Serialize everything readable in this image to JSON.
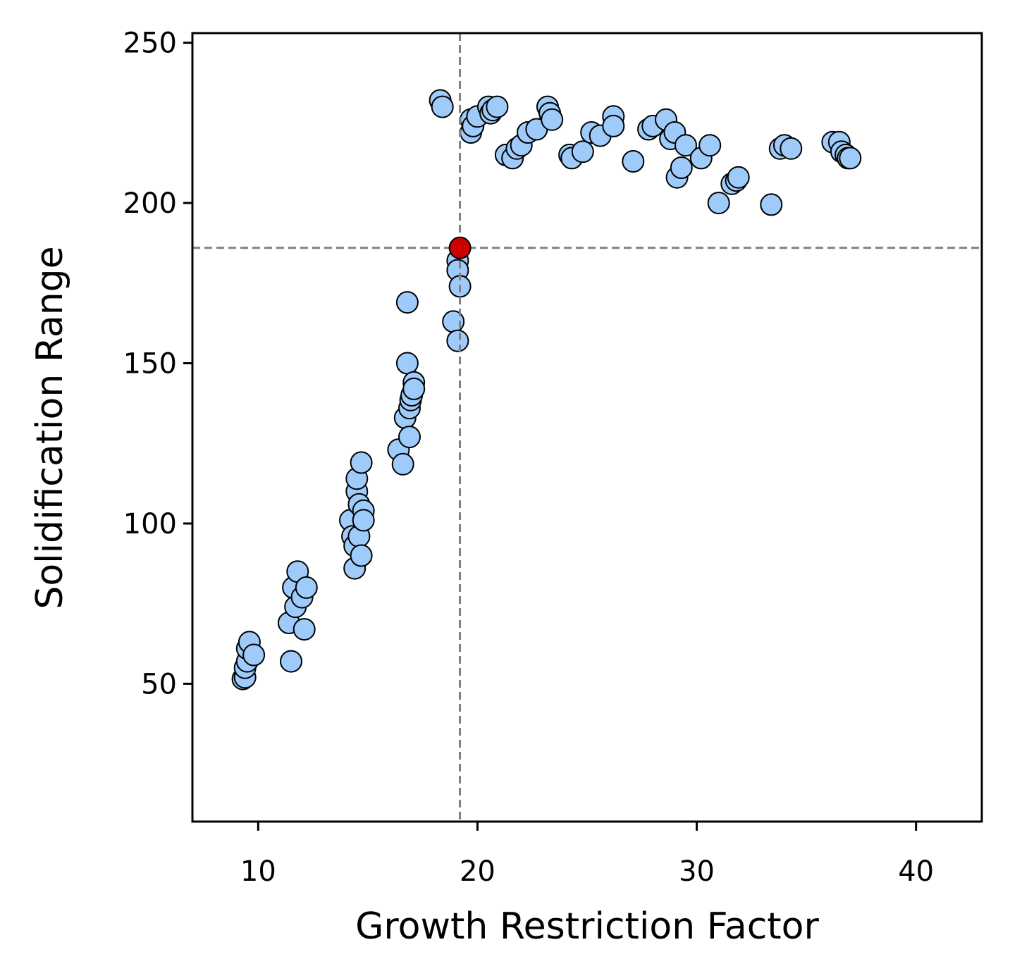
{
  "chart_data": {
    "type": "scatter",
    "title": "",
    "xlabel": "Growth Restriction Factor",
    "ylabel": "Solidification Range",
    "xlim": [
      7,
      43
    ],
    "ylim": [
      7,
      253
    ],
    "xticks": [
      10,
      20,
      30,
      40
    ],
    "yticks": [
      50,
      100,
      150,
      200,
      250
    ],
    "grid": false,
    "legend": null,
    "reference_lines": {
      "x": 19.2,
      "y": 186,
      "style": "dashed",
      "color": "#808080"
    },
    "colors": {
      "points": "#9ecbfa",
      "highlight": "#cc0000",
      "edge": "#000000",
      "reference": "#808080"
    },
    "series": [
      {
        "points": [
          [
            9.3,
            51.5
          ],
          [
            9.4,
            52
          ],
          [
            9.4,
            55
          ],
          [
            9.5,
            57
          ],
          [
            9.5,
            61
          ],
          [
            9.6,
            63
          ],
          [
            9.8,
            59
          ],
          [
            11.4,
            69
          ],
          [
            11.5,
            57
          ],
          [
            11.6,
            80
          ],
          [
            11.7,
            74
          ],
          [
            11.8,
            85
          ],
          [
            12.0,
            77
          ],
          [
            12.1,
            67
          ],
          [
            12.2,
            80
          ],
          [
            14.2,
            101
          ],
          [
            14.3,
            96
          ],
          [
            14.4,
            86
          ],
          [
            14.4,
            93
          ],
          [
            14.5,
            110
          ],
          [
            14.5,
            114
          ],
          [
            14.6,
            106
          ],
          [
            14.6,
            96
          ],
          [
            14.7,
            90
          ],
          [
            14.7,
            119
          ],
          [
            14.8,
            104
          ],
          [
            14.8,
            101
          ],
          [
            16.4,
            123
          ],
          [
            16.6,
            118.5
          ],
          [
            16.7,
            133
          ],
          [
            16.8,
            169
          ],
          [
            16.8,
            150
          ],
          [
            16.9,
            136
          ],
          [
            16.9,
            127
          ],
          [
            16.95,
            138.5
          ],
          [
            17.0,
            140
          ],
          [
            17.1,
            144
          ],
          [
            17.1,
            142
          ],
          [
            18.3,
            232
          ],
          [
            18.4,
            230
          ],
          [
            18.9,
            163
          ],
          [
            19.1,
            182
          ],
          [
            19.1,
            179
          ],
          [
            19.1,
            157
          ],
          [
            19.2,
            174
          ],
          [
            19.7,
            226
          ],
          [
            19.7,
            222
          ],
          [
            19.8,
            224
          ],
          [
            20.0,
            227
          ],
          [
            20.5,
            230
          ],
          [
            20.6,
            228
          ],
          [
            20.7,
            229
          ],
          [
            20.9,
            230
          ],
          [
            21.3,
            215
          ],
          [
            21.6,
            214
          ],
          [
            21.8,
            217
          ],
          [
            22.0,
            218
          ],
          [
            22.3,
            222
          ],
          [
            22.7,
            223
          ],
          [
            23.2,
            230
          ],
          [
            23.3,
            228
          ],
          [
            23.4,
            226
          ],
          [
            24.2,
            215
          ],
          [
            24.3,
            214
          ],
          [
            24.8,
            216
          ],
          [
            25.2,
            222
          ],
          [
            25.6,
            221
          ],
          [
            26.2,
            227
          ],
          [
            26.2,
            224
          ],
          [
            27.1,
            213
          ],
          [
            27.8,
            223
          ],
          [
            28.0,
            224
          ],
          [
            28.6,
            226
          ],
          [
            28.8,
            220
          ],
          [
            29.0,
            222
          ],
          [
            29.1,
            208
          ],
          [
            29.3,
            211
          ],
          [
            29.5,
            218
          ],
          [
            30.2,
            214
          ],
          [
            30.6,
            218
          ],
          [
            31.0,
            200
          ],
          [
            31.6,
            206
          ],
          [
            31.8,
            207
          ],
          [
            31.9,
            208
          ],
          [
            33.4,
            199.5
          ],
          [
            33.8,
            217
          ],
          [
            34.0,
            218
          ],
          [
            34.3,
            217
          ],
          [
            36.2,
            219
          ],
          [
            36.5,
            219
          ],
          [
            36.6,
            216
          ],
          [
            36.8,
            215
          ],
          [
            36.9,
            214
          ],
          [
            37.0,
            214
          ]
        ]
      },
      {
        "points": [
          [
            19.2,
            186
          ]
        ]
      }
    ]
  }
}
